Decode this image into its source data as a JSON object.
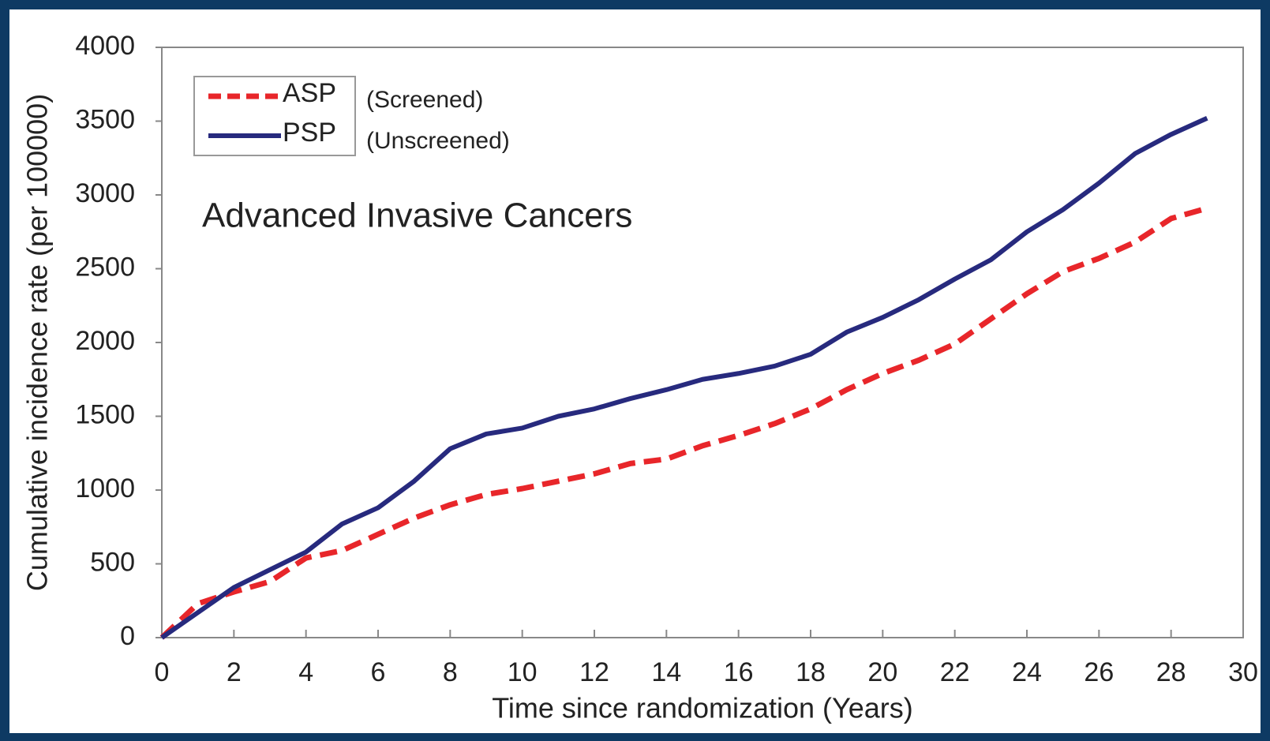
{
  "chart_data": {
    "type": "line",
    "xlabel": "Time since randomization (Years)",
    "ylabel": "Cumulative incidence rate (per  100000)",
    "annotations": [
      "Advanced Invasive Cancers",
      "(Screened)",
      "(Unscreened)"
    ],
    "x": [
      0,
      1,
      2,
      3,
      4,
      5,
      6,
      7,
      8,
      9,
      10,
      11,
      12,
      13,
      14,
      15,
      16,
      17,
      18,
      19,
      20,
      21,
      22,
      23,
      24,
      25,
      26,
      27,
      28,
      29
    ],
    "series": [
      {
        "name": "ASP",
        "color": "#e8262a",
        "dash": true,
        "values": [
          0,
          230,
          310,
          380,
          540,
          590,
          700,
          810,
          900,
          970,
          1010,
          1060,
          1110,
          1180,
          1210,
          1300,
          1370,
          1450,
          1550,
          1680,
          1790,
          1880,
          1990,
          2160,
          2330,
          2480,
          2570,
          2680,
          2840,
          2910
        ]
      },
      {
        "name": "PSP",
        "color": "#272a7e",
        "dash": false,
        "values": [
          0,
          170,
          340,
          460,
          580,
          770,
          880,
          1060,
          1280,
          1380,
          1420,
          1500,
          1550,
          1620,
          1680,
          1750,
          1790,
          1840,
          1920,
          2070,
          2170,
          2290,
          2430,
          2560,
          2750,
          2900,
          3080,
          3280,
          3410,
          3520
        ]
      }
    ],
    "xlim": [
      0,
      30
    ],
    "xticks": [
      0,
      2,
      4,
      6,
      8,
      10,
      12,
      14,
      16,
      18,
      20,
      22,
      24,
      26,
      28,
      30
    ],
    "ylim": [
      0,
      4000
    ],
    "yticks": [
      0,
      500,
      1000,
      1500,
      2000,
      2500,
      3000,
      3500,
      4000
    ],
    "grid": false,
    "legend": "upper left"
  }
}
